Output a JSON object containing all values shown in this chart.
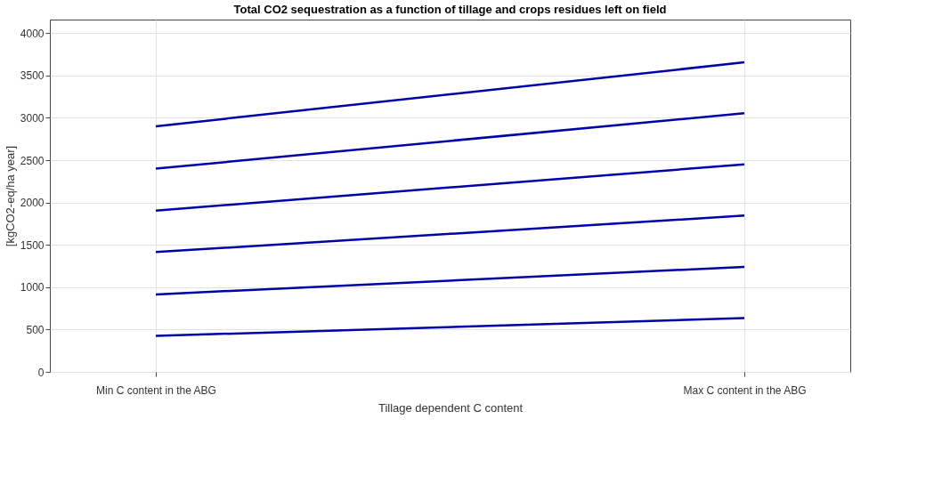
{
  "chart_data": {
    "type": "line",
    "title": "Total CO2 sequestration as a function of tillage and crops residues left on field",
    "xlabel": "Tillage dependent C content",
    "ylabel": "[kgCO2-eq/ha year]",
    "categories": [
      "Min C content in the ABG",
      "Max C content in the ABG"
    ],
    "series": [
      {
        "color": "#0000a8",
        "values": [
          2900,
          3655
        ]
      },
      {
        "color": "#0000a8",
        "values": [
          2400,
          3055
        ]
      },
      {
        "color": "#0000a8",
        "values": [
          1905,
          2450
        ]
      },
      {
        "color": "#0000a8",
        "values": [
          1415,
          1845
        ]
      },
      {
        "color": "#0000a8",
        "values": [
          915,
          1240
        ]
      },
      {
        "color": "#0000a8",
        "values": [
          425,
          635
        ]
      }
    ],
    "ylim": [
      0,
      4160
    ],
    "yticks": [
      0,
      500,
      1000,
      1500,
      2000,
      2500,
      3000,
      3500,
      4000
    ],
    "grid": true,
    "marker": "none",
    "line_style": "solid"
  }
}
